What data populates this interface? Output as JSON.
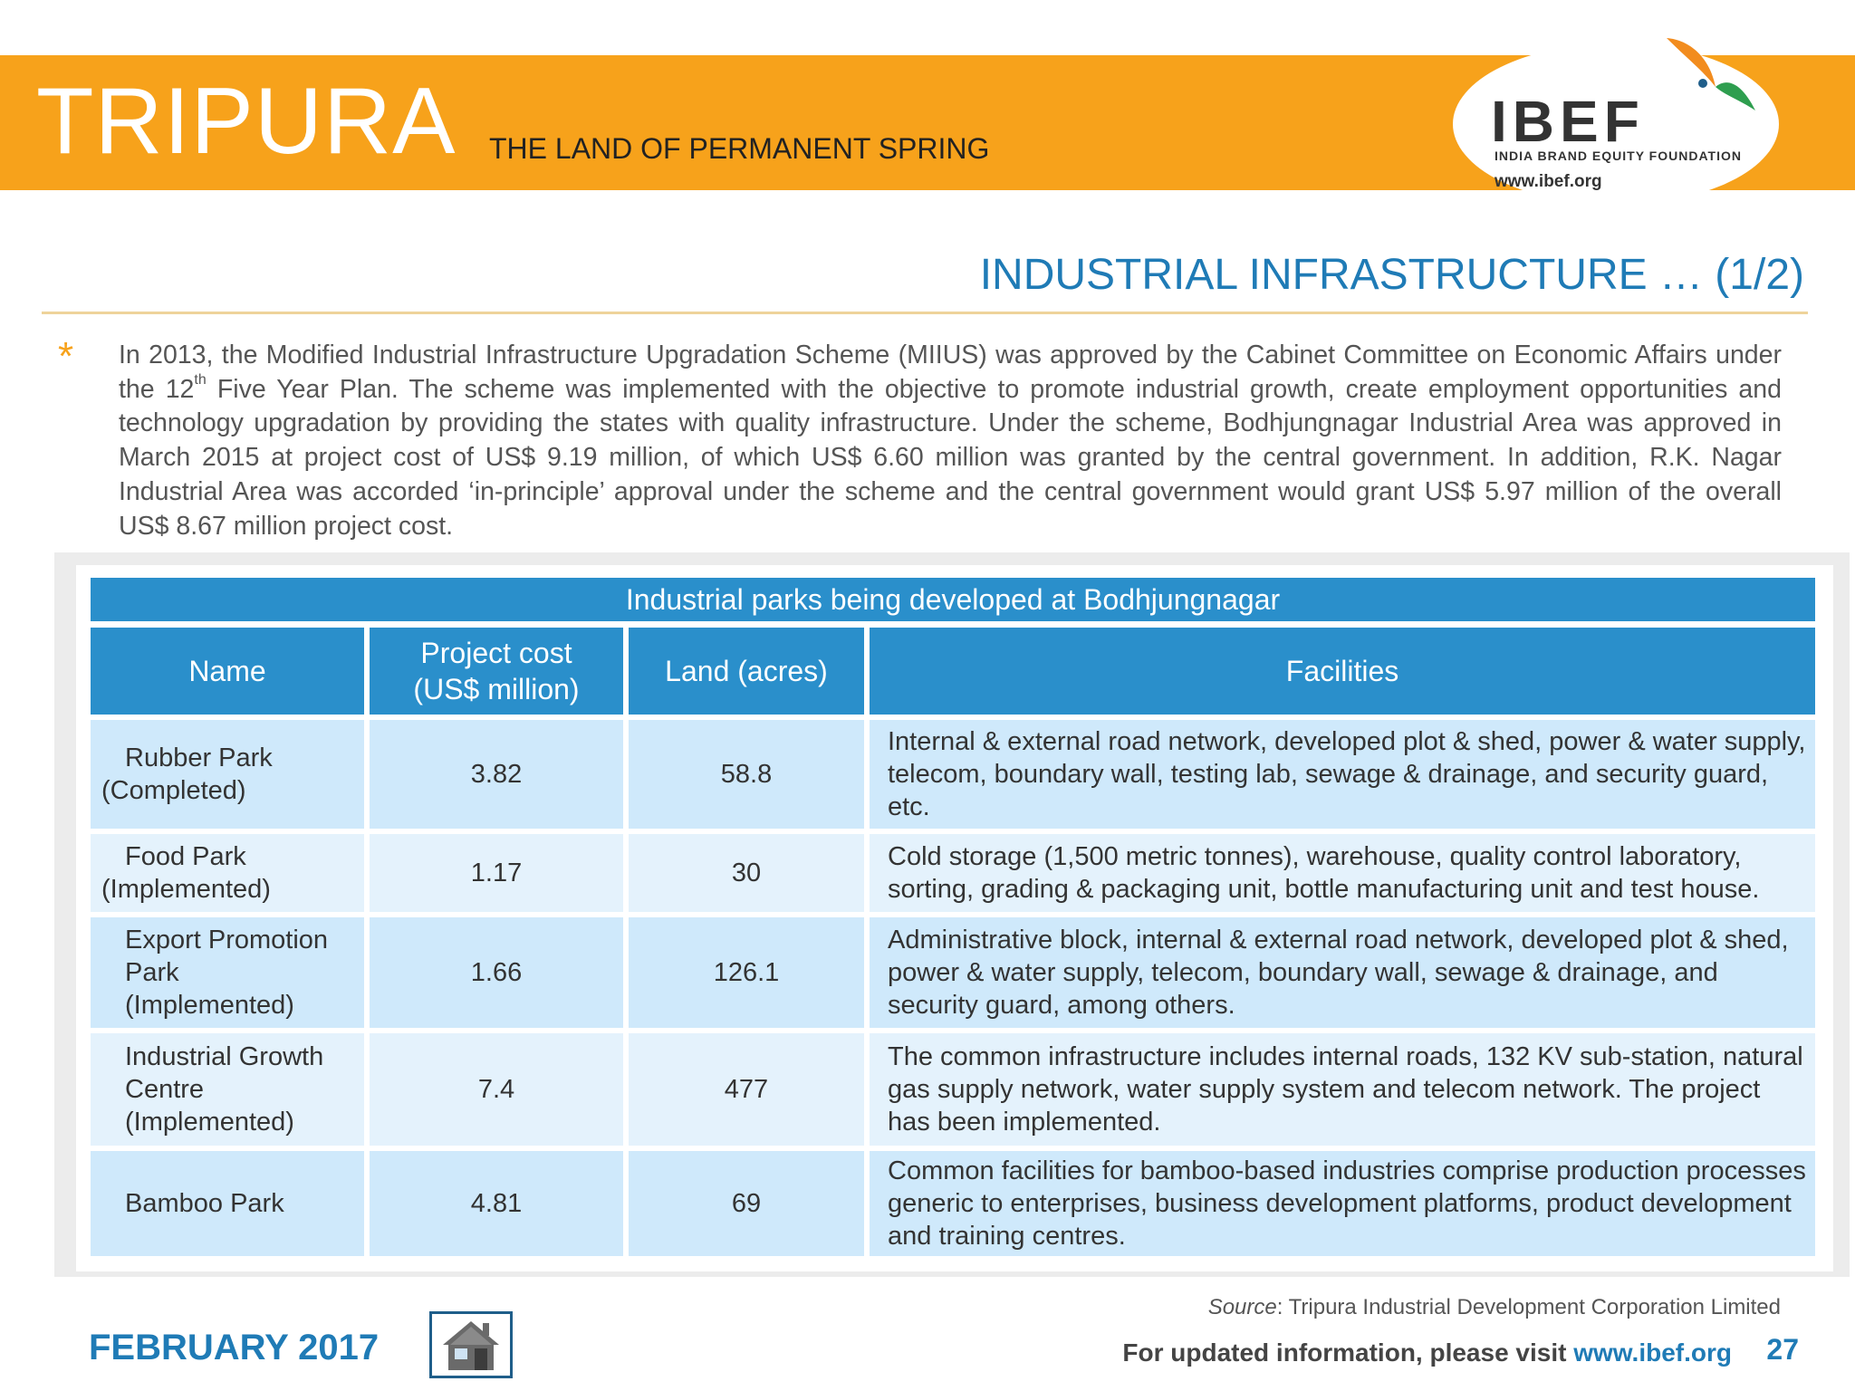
{
  "header": {
    "title": "TRIPURA",
    "subtitle": "THE LAND OF PERMANENT SPRING",
    "logo": {
      "name": "IBEF",
      "tagline": "INDIA BRAND EQUITY FOUNDATION",
      "url": "www.ibef.org",
      "colors": [
        "#f28c1e",
        "#2e9e4f"
      ]
    }
  },
  "section": {
    "title": "INDUSTRIAL INFRASTRUCTURE … (1/2)"
  },
  "intro": {
    "part1": "In 2013, the Modified Industrial Infrastructure Upgradation Scheme (MIIUS) was approved by the Cabinet Committee on Economic Affairs under the 12",
    "sup": "th",
    "part2": " Five Year Plan. The scheme was implemented with the objective to promote industrial growth, create employment opportunities and technology upgradation by providing the states with quality infrastructure. Under the scheme, Bodhjungnagar Industrial Area was approved in March 2015 at project cost of US$ 9.19 million, of which US$ 6.60 million was granted by the central government. In addition, R.K. Nagar Industrial Area was accorded ‘in-principle’ approval under the scheme and the central government would grant US$ 5.97 million of the overall US$ 8.67 million project cost."
  },
  "table": {
    "title": "Industrial parks being developed at Bodhjungnagar",
    "headers": {
      "name": "Name",
      "cost_line1": "Project cost",
      "cost_line2": "(US$ million)",
      "land": "Land (acres)",
      "facilities": "Facilities"
    },
    "rows": [
      {
        "name_line1": "Rubber Park",
        "name_line2": "(Completed)",
        "cost": "3.82",
        "land": "58.8",
        "facilities": "Internal & external road network, developed plot & shed, power & water supply, telecom, boundary wall, testing lab, sewage & drainage, and security guard, etc."
      },
      {
        "name_line1": "Food Park",
        "name_line2": "(Implemented)",
        "cost": "1.17",
        "land": "30",
        "facilities": "Cold storage (1,500 metric tonnes), warehouse, quality control laboratory, sorting, grading & packaging unit, bottle manufacturing unit and test house."
      },
      {
        "name_line1": "Export Promotion",
        "name_line2": "Park",
        "name_line3": "(Implemented)",
        "cost": "1.66",
        "land": "126.1",
        "facilities": "Administrative block, internal & external road network, developed plot & shed, power & water supply, telecom, boundary wall, sewage & drainage, and security guard, among others."
      },
      {
        "name_line1": "Industrial Growth",
        "name_line2": "Centre",
        "name_line3": "(Implemented)",
        "cost": "7.4",
        "land": "477",
        "facilities": "The common infrastructure includes internal roads, 132 KV sub-station, natural gas supply network, water supply system and telecom network. The project has been implemented."
      },
      {
        "name_line1": "Bamboo Park",
        "cost": "4.81",
        "land": "69",
        "facilities": "Common facilities for bamboo-based industries comprise production processes generic to enterprises, business development platforms, product development and training centres."
      }
    ]
  },
  "footer": {
    "source_label": "Source",
    "source_text": ": Tripura Industrial Development Corporation Limited",
    "date": "FEBRUARY 2017",
    "home_icon": "home-icon",
    "visit_text": "For updated information, please visit ",
    "visit_link": "www.ibef.org",
    "page_number": "27"
  }
}
